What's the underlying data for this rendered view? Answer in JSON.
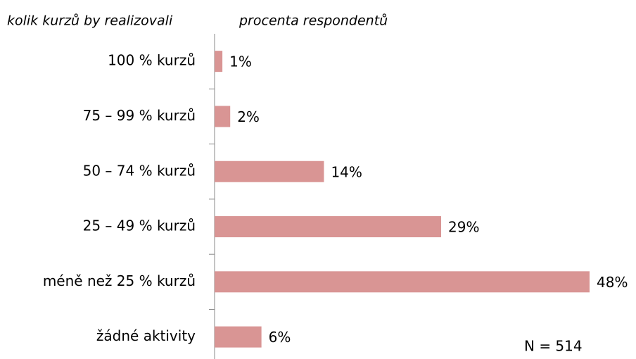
{
  "chart_data": {
    "type": "barh",
    "y_label": "kolik kurzů by realizovali",
    "x_label": "procenta respondentů",
    "annotation": "N = 514",
    "categories": [
      "100 % kurzů",
      "75 – 99 % kurzů",
      "50 – 74 % kurzů",
      "25 – 49 % kurzů",
      "méně než 25 % kurzů",
      "žádné aktivity"
    ],
    "values": [
      1,
      2,
      14,
      29,
      48,
      6
    ],
    "value_labels": [
      "1%",
      "2%",
      "14%",
      "29%",
      "48%",
      "6%"
    ],
    "color": "#d99594"
  }
}
